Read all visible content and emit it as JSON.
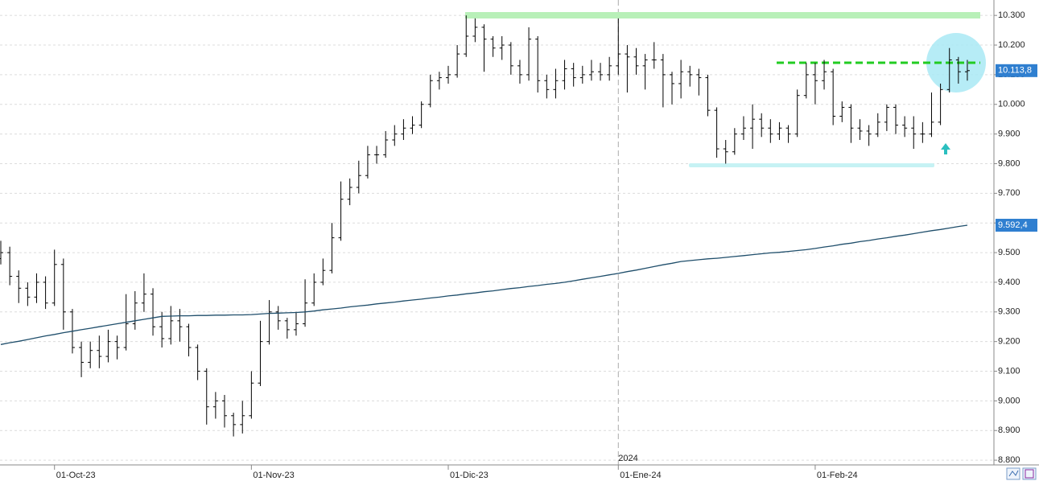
{
  "chart_data": {
    "type": "ohlc",
    "categories": [
      null,
      null,
      null,
      null,
      null,
      null,
      "01-Oct-23",
      null,
      null,
      null,
      null,
      null,
      null,
      null,
      null,
      null,
      null,
      null,
      null,
      null,
      null,
      null,
      null,
      null,
      null,
      null,
      null,
      null,
      "01-Nov-23",
      null,
      null,
      null,
      null,
      null,
      null,
      null,
      null,
      null,
      null,
      null,
      null,
      null,
      null,
      null,
      null,
      null,
      null,
      null,
      null,
      null,
      "01-Dic-23",
      null,
      null,
      null,
      null,
      null,
      null,
      null,
      null,
      null,
      null,
      null,
      null,
      null,
      null,
      null,
      null,
      null,
      null,
      "01-Ene-24",
      null,
      null,
      null,
      null,
      null,
      null,
      null,
      null,
      null,
      null,
      null,
      null,
      null,
      null,
      null,
      null,
      null,
      null,
      null,
      null,
      null,
      "01-Feb-24",
      null,
      null,
      null,
      null,
      null,
      null,
      null,
      null,
      null,
      null,
      null,
      null,
      null,
      null,
      null,
      null,
      null
    ],
    "year_label": "2024",
    "year_label_index": 69,
    "series": [
      {
        "color": "#000000",
        "open": [
          9480,
          9500,
          9420,
          9380,
          9350,
          9400,
          9330,
          9460,
          9300,
          9180,
          9130,
          9170,
          9150,
          9200,
          9180,
          9260,
          9330,
          9360,
          9250,
          9210,
          9270,
          9250,
          9180,
          9100,
          8980,
          9000,
          8950,
          8920,
          8950,
          9060,
          9200,
          9300,
          9270,
          9240,
          9260,
          9330,
          9400,
          9440,
          9550,
          9680,
          9720,
          9760,
          9830,
          9830,
          9880,
          9900,
          9920,
          9930,
          10000,
          10080,
          10090,
          10100,
          10170,
          10230,
          10260,
          10220,
          10190,
          10200,
          10130,
          10100,
          10220,
          10080,
          10050,
          10080,
          10120,
          10090,
          10100,
          10110,
          10100,
          10130,
          10170,
          10160,
          10130,
          10150,
          10150,
          10100,
          10070,
          10110,
          10100,
          10090,
          9980,
          9850,
          9840,
          9900,
          9920,
          9950,
          9920,
          9900,
          9920,
          9900,
          10030,
          10100,
          10080,
          10110,
          9960,
          9990,
          9920,
          9910,
          9900,
          9940,
          9990,
          9930,
          9920,
          9900,
          9900,
          9940,
          10050,
          10150,
          10110
        ],
        "high": [
          9540,
          9520,
          9440,
          9400,
          9430,
          9420,
          9510,
          9480,
          9310,
          9200,
          9200,
          9220,
          9240,
          9220,
          9360,
          9370,
          9430,
          9380,
          9300,
          9320,
          9310,
          9260,
          9190,
          9110,
          9030,
          9020,
          8960,
          9000,
          9100,
          9270,
          9340,
          9320,
          9280,
          9300,
          9410,
          9430,
          9480,
          9600,
          9740,
          9750,
          9810,
          9860,
          9860,
          9910,
          9930,
          9950,
          9960,
          10010,
          10100,
          10110,
          10130,
          10200,
          10300,
          10290,
          10270,
          10230,
          10230,
          10210,
          10150,
          10260,
          10230,
          10100,
          10120,
          10150,
          10140,
          10130,
          10150,
          10140,
          10160,
          10290,
          10200,
          10190,
          10170,
          10210,
          10170,
          10110,
          10150,
          10130,
          10120,
          10100,
          9990,
          9880,
          9920,
          9960,
          10000,
          9970,
          9950,
          9940,
          9930,
          10050,
          10140,
          10140,
          10150,
          10120,
          10010,
          10000,
          9950,
          9930,
          9970,
          10000,
          10000,
          9960,
          9960,
          9940,
          10040,
          10070,
          10190,
          10160,
          10150
        ],
        "low": [
          9460,
          9390,
          9330,
          9320,
          9330,
          9310,
          9320,
          9240,
          9160,
          9080,
          9110,
          9110,
          9130,
          9140,
          9170,
          9240,
          9300,
          9220,
          9180,
          9190,
          9200,
          9150,
          9070,
          8920,
          8940,
          8910,
          8880,
          8890,
          8940,
          9050,
          9190,
          9240,
          9210,
          9220,
          9250,
          9320,
          9390,
          9430,
          9540,
          9660,
          9700,
          9750,
          9800,
          9820,
          9860,
          9880,
          9900,
          9920,
          9990,
          10050,
          10070,
          10090,
          10160,
          10210,
          10110,
          10160,
          10150,
          10100,
          10070,
          10080,
          10040,
          10020,
          10020,
          10050,
          10060,
          10070,
          10080,
          10080,
          10080,
          10100,
          10040,
          10100,
          10050,
          10120,
          9990,
          10000,
          10020,
          10060,
          10030,
          9960,
          9820,
          9800,
          9830,
          9880,
          9850,
          9890,
          9870,
          9880,
          9870,
          9890,
          10020,
          10000,
          10050,
          9930,
          9940,
          9870,
          9880,
          9860,
          9890,
          9910,
          9900,
          9890,
          9850,
          9870,
          9890,
          9930,
          10040,
          10070,
          10080
        ],
        "close": [
          9500,
          9420,
          9380,
          9350,
          9400,
          9330,
          9460,
          9300,
          9180,
          9130,
          9170,
          9150,
          9200,
          9180,
          9260,
          9330,
          9360,
          9250,
          9210,
          9270,
          9250,
          9180,
          9100,
          8980,
          9000,
          8950,
          8920,
          8950,
          9060,
          9200,
          9300,
          9270,
          9240,
          9260,
          9330,
          9400,
          9440,
          9550,
          9680,
          9720,
          9760,
          9830,
          9830,
          9880,
          9900,
          9920,
          9930,
          10000,
          10080,
          10090,
          10100,
          10170,
          10230,
          10260,
          10220,
          10190,
          10200,
          10130,
          10100,
          10220,
          10080,
          10050,
          10080,
          10120,
          10090,
          10100,
          10110,
          10100,
          10130,
          10170,
          10160,
          10130,
          10150,
          10150,
          10100,
          10070,
          10110,
          10100,
          10090,
          9980,
          9850,
          9840,
          9900,
          9920,
          9950,
          9920,
          9900,
          9920,
          9900,
          10030,
          10100,
          10080,
          10110,
          9960,
          9990,
          9920,
          9910,
          9900,
          9940,
          9990,
          9930,
          9920,
          9900,
          9900,
          9940,
          10050,
          10150,
          10110,
          10113.8
        ]
      },
      {
        "type": "line",
        "color": "#1f4e6b",
        "values": [
          9190,
          9196,
          9201,
          9207,
          9213,
          9219,
          9224,
          9230,
          9235,
          9240,
          9245,
          9250,
          9255,
          9260,
          9265,
          9270,
          9275,
          9280,
          9285,
          9286,
          9287,
          9287,
          9288,
          9288,
          9289,
          9289,
          9290,
          9290,
          9291,
          9293,
          9295,
          9296,
          9297,
          9298,
          9300,
          9303,
          9307,
          9310,
          9313,
          9317,
          9320,
          9323,
          9327,
          9330,
          9333,
          9337,
          9340,
          9343,
          9347,
          9350,
          9354,
          9357,
          9361,
          9364,
          9368,
          9371,
          9375,
          9379,
          9382,
          9386,
          9389,
          9393,
          9396,
          9400,
          9405,
          9410,
          9415,
          9420,
          9425,
          9430,
          9436,
          9441,
          9447,
          9453,
          9459,
          9464,
          9470,
          9473,
          9476,
          9479,
          9481,
          9484,
          9487,
          9490,
          9493,
          9496,
          9499,
          9501,
          9504,
          9507,
          9510,
          9514,
          9519,
          9523,
          9528,
          9532,
          9537,
          9541,
          9546,
          9550,
          9555,
          9559,
          9564,
          9569,
          9574,
          9578,
          9583,
          9588,
          9592.4
        ]
      }
    ],
    "price_tags": [
      {
        "value": 10113.8,
        "label": "10.113,8"
      },
      {
        "value": 9592.4,
        "label": "9.592,4"
      }
    ],
    "price_tag_color": "#2f7fd0",
    "ylim": [
      8784,
      10352
    ],
    "yticks": [
      {
        "value": 8800,
        "label": "8.800"
      },
      {
        "value": 8900,
        "label": "8.900"
      },
      {
        "value": 9000,
        "label": "9.000"
      },
      {
        "value": 9100,
        "label": "9.100"
      },
      {
        "value": 9200,
        "label": "9.200"
      },
      {
        "value": 9300,
        "label": "9.300"
      },
      {
        "value": 9400,
        "label": "9.400"
      },
      {
        "value": 9500,
        "label": "9.500"
      },
      {
        "value": 9600,
        "label": "9.600"
      },
      {
        "value": 9700,
        "label": "9.700"
      },
      {
        "value": 9800,
        "label": "9.800"
      },
      {
        "value": 9900,
        "label": "9.900"
      },
      {
        "value": 10000,
        "label": "10.000"
      },
      {
        "value": 10100,
        "label": "10.100"
      },
      {
        "value": 10200,
        "label": "10.200"
      },
      {
        "value": 10300,
        "label": "10.300"
      }
    ],
    "grid": true
  }
}
